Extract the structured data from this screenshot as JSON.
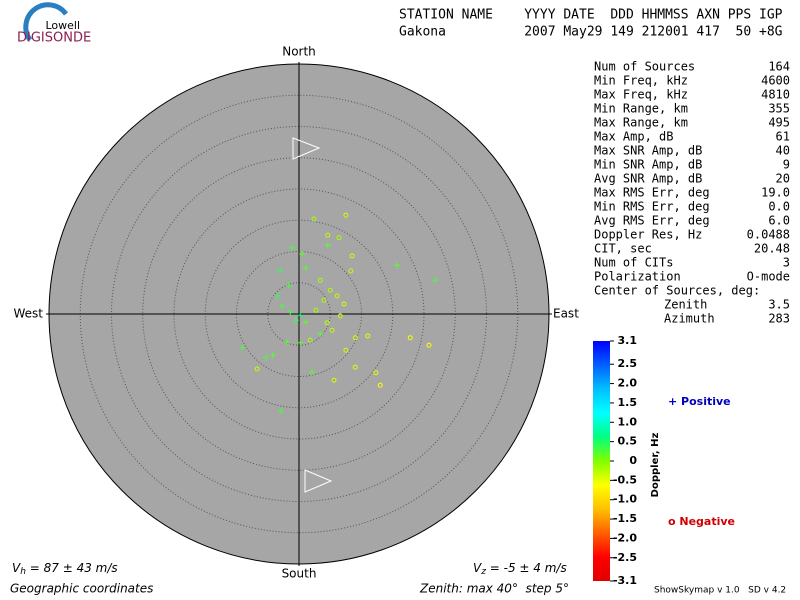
{
  "chart_data": {
    "type": "skymap",
    "logo": {
      "top": "Lowell",
      "bottom": "DIGISONDE"
    },
    "header": {
      "line1": "STATION NAME    YYYY DATE  DDD HHMMSS AXN PPS IGP",
      "line2": "Gakona          2007 May29 149 212001 417  50 +8G"
    },
    "directions": {
      "north": "North",
      "south": "South",
      "east": "East",
      "west": "West"
    },
    "zenith_max": 40,
    "zenith_step": 5,
    "stats": [
      [
        "Num of Sources",
        "164"
      ],
      [
        "Min Freq, kHz",
        "4600"
      ],
      [
        "Max Freq, kHz",
        "4810"
      ],
      [
        "Min Range, km",
        "355"
      ],
      [
        "Max Range, km",
        "495"
      ],
      [
        "Max Amp, dB",
        "61"
      ],
      [
        "Max SNR Amp, dB",
        "40"
      ],
      [
        "Min SNR Amp, dB",
        "9"
      ],
      [
        "Avg SNR Amp, dB",
        "20"
      ],
      [
        "Max RMS Err, deg",
        "19.0"
      ],
      [
        "Min RMS Err, deg",
        "0.0"
      ],
      [
        "Avg RMS Err, deg",
        "6.0"
      ],
      [
        "Doppler Res, Hz",
        "0.0488"
      ],
      [
        "CIT, sec",
        "20.48"
      ],
      [
        "Num of CITs",
        "3"
      ],
      [
        "Polarization",
        "O-mode"
      ]
    ],
    "center_title": "Center of Sources, deg:",
    "center": [
      [
        "Zenith",
        "3.5"
      ],
      [
        "Azimuth",
        "283"
      ]
    ],
    "colorbar_label": "Doppler, Hz",
    "colorscale": [
      "#0000ff",
      "#0060ff",
      "#00c0ff",
      "#00ffff",
      "#00ff80",
      "#80ff00",
      "#ffff00",
      "#ffc000",
      "#ff6000",
      "#ff0000",
      "#e00000"
    ],
    "clim": [
      -3.1,
      3.1
    ],
    "cticks": [
      3.1,
      2.5,
      {
        "value": 2.0,
        "label": "2.0"
      },
      1.5,
      {
        "value": 1.0,
        "label": "1.0"
      },
      0.5,
      0,
      -0.5,
      {
        "value": -1.0,
        "label": "-1.0"
      },
      -1.5,
      {
        "value": -2.0,
        "label": "-2.0"
      },
      -2.5,
      -3.1
    ],
    "legend": {
      "positive": "+ Positive",
      "negative": "o Negative"
    },
    "vh": {
      "symbol": "V",
      "sub": "h",
      "text": " = 87 ± 43 m/s"
    },
    "vz": {
      "symbol": "V",
      "sub": "z",
      "text": " = -5 ± 4 m/s"
    },
    "footer": {
      "coords": "Geographic coordinates",
      "zenith": "Zenith: max 40°  step 5°",
      "version": "ShowSkymap v 1.0   SD v 4.2"
    },
    "sources": [
      {
        "east": 7.5,
        "north": 15.8,
        "doppler": -0.4
      },
      {
        "east": 2.4,
        "north": 15.2,
        "doppler": -0.2
      },
      {
        "east": 4.6,
        "north": 12.6,
        "doppler": -0.3
      },
      {
        "east": 6.4,
        "north": 12.2,
        "doppler": -0.2
      },
      {
        "east": 4.6,
        "north": 11.0,
        "doppler": 0.2
      },
      {
        "east": -1.1,
        "north": 10.6,
        "doppler": 0.3
      },
      {
        "east": 8.5,
        "north": 9.3,
        "doppler": -0.4
      },
      {
        "east": 0.5,
        "north": 9.6,
        "doppler": 0.2
      },
      {
        "east": 15.7,
        "north": 7.8,
        "doppler": 0.2
      },
      {
        "east": 8.3,
        "north": 6.9,
        "doppler": -0.3
      },
      {
        "east": 21.8,
        "north": 5.4,
        "doppler": 0.3
      },
      {
        "east": -3.0,
        "north": 7.0,
        "doppler": 0.4
      },
      {
        "east": 1.1,
        "north": 7.4,
        "doppler": 0.2
      },
      {
        "east": 3.4,
        "north": 5.4,
        "doppler": -0.2
      },
      {
        "east": -1.6,
        "north": 4.6,
        "doppler": 0.3
      },
      {
        "east": 5.0,
        "north": 3.8,
        "doppler": -0.2
      },
      {
        "east": 6.1,
        "north": 2.9,
        "doppler": -0.3
      },
      {
        "east": 7.2,
        "north": 1.6,
        "doppler": -0.4
      },
      {
        "east": 6.6,
        "north": -0.3,
        "doppler": -0.3
      },
      {
        "east": 4.0,
        "north": 2.2,
        "doppler": -0.2
      },
      {
        "east": 2.7,
        "north": 0.6,
        "doppler": -0.2
      },
      {
        "east": -3.5,
        "north": 2.9,
        "doppler": 0.4
      },
      {
        "east": -2.7,
        "north": 1.3,
        "doppler": 0.3
      },
      {
        "east": 0.2,
        "north": -0.2,
        "doppler": 0.5
      },
      {
        "east": -0.5,
        "north": -1.0,
        "doppler": 0.4
      },
      {
        "east": -1.4,
        "north": 0.3,
        "doppler": 0.3
      },
      {
        "east": 1.1,
        "north": -1.3,
        "doppler": 0.2
      },
      {
        "east": 3.4,
        "north": -3.2,
        "doppler": 0.2
      },
      {
        "east": 5.3,
        "north": -2.6,
        "doppler": -0.3
      },
      {
        "east": 9.0,
        "north": -3.8,
        "doppler": -0.4
      },
      {
        "east": 11.0,
        "north": -3.5,
        "doppler": -0.5
      },
      {
        "east": 17.8,
        "north": -3.8,
        "doppler": -0.6
      },
      {
        "east": 20.8,
        "north": -5.0,
        "doppler": -0.6
      },
      {
        "east": -9.1,
        "north": -5.4,
        "doppler": 0.3
      },
      {
        "east": -6.7,
        "north": -8.8,
        "doppler": -0.3
      },
      {
        "east": -5.3,
        "north": -7.0,
        "doppler": 0.3
      },
      {
        "east": -4.2,
        "north": -6.6,
        "doppler": 0.2
      },
      {
        "east": -1.9,
        "north": -4.5,
        "doppler": 0.2
      },
      {
        "east": 2.1,
        "north": -9.3,
        "doppler": 0.2
      },
      {
        "east": 5.6,
        "north": -10.6,
        "doppler": -0.4
      },
      {
        "east": 12.3,
        "north": -9.4,
        "doppler": -0.5
      },
      {
        "east": 13.0,
        "north": -11.4,
        "doppler": -0.6
      },
      {
        "east": -2.9,
        "north": -15.5,
        "doppler": 0.3
      },
      {
        "east": 7.5,
        "north": -5.8,
        "doppler": -0.4
      },
      {
        "east": 9.0,
        "north": -8.5,
        "doppler": -0.5
      },
      {
        "east": 0.2,
        "north": -4.6,
        "doppler": 0.2
      },
      {
        "east": 1.8,
        "north": -4.2,
        "doppler": -0.2
      },
      {
        "east": 4.5,
        "north": -1.4,
        "doppler": -0.3
      }
    ]
  }
}
